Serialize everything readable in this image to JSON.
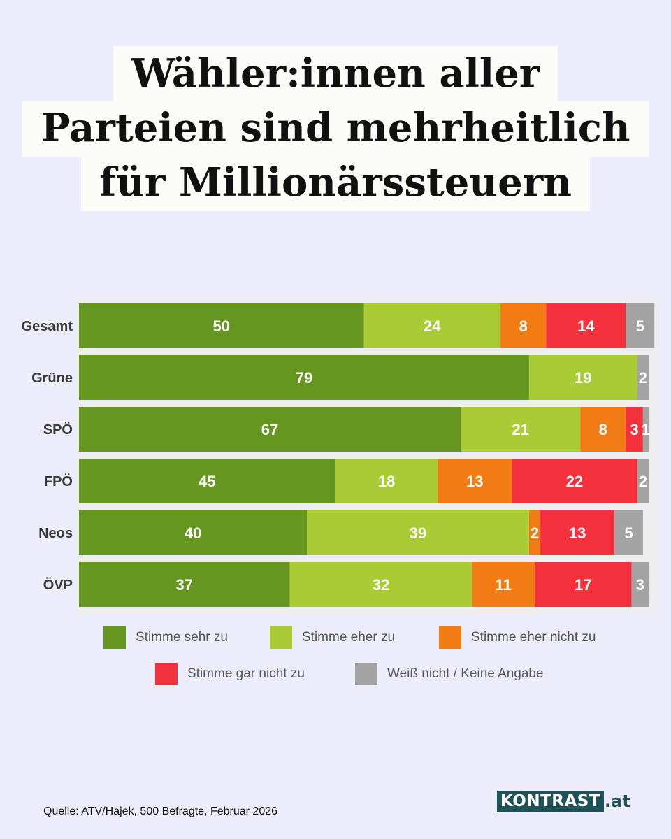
{
  "title": {
    "line1": "Wähler:innen aller",
    "line2": "Parteien sind mehrheitlich",
    "line3": "für Millionärssteuern"
  },
  "chart_data": {
    "type": "bar",
    "orientation": "horizontal",
    "stacked": true,
    "categories": [
      "Gesamt",
      "Grüne",
      "SPÖ",
      "FPÖ",
      "Neos",
      "ÖVP"
    ],
    "series": [
      {
        "name": "Stimme sehr zu",
        "color": "#659620",
        "values": [
          50,
          79,
          67,
          45,
          40,
          37
        ]
      },
      {
        "name": "Stimme eher zu",
        "color": "#a9cb36",
        "values": [
          24,
          19,
          21,
          18,
          39,
          32
        ]
      },
      {
        "name": "Stimme eher nicht zu",
        "color": "#f07c13",
        "values": [
          8,
          0,
          8,
          13,
          2,
          11
        ]
      },
      {
        "name": "Stimme gar nicht zu",
        "color": "#f3313c",
        "values": [
          14,
          0,
          3,
          22,
          13,
          17
        ]
      },
      {
        "name": "Weiß nicht / Keine Angabe",
        "color": "#a3a3a3",
        "values": [
          5,
          2,
          1,
          2,
          5,
          3
        ]
      }
    ],
    "xlim": [
      0,
      100
    ],
    "legend_position": "bottom"
  },
  "source": "Quelle: ATV/Hajek, 500 Befragte, Februar 2026",
  "logo": {
    "name": "KONTRAST",
    "tld": ".at"
  }
}
